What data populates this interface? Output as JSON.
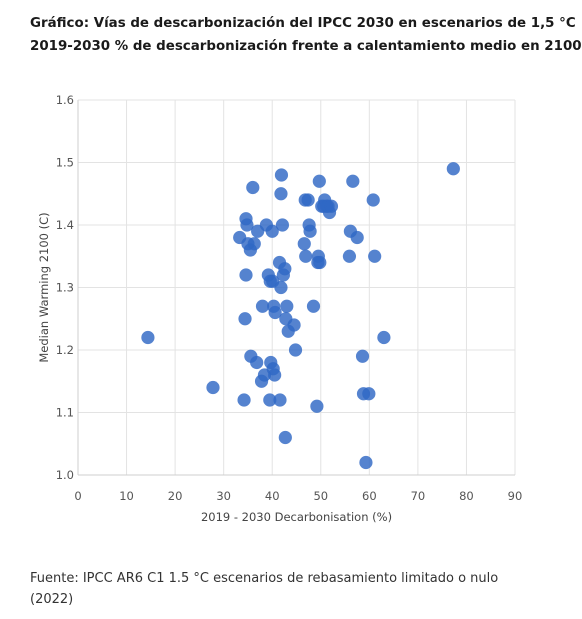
{
  "title_line1": "Gráfico: Vías de descarbonización del IPCC 2030 en escenarios de 1,5 °C",
  "title_line2": "2019-2030 % de descarbonización frente a calentamiento medio en 2100",
  "source": "Fuente: IPCC AR6 C1 1.5 °C escenarios de rebasamiento limitado o nulo (2022)",
  "chart_data": {
    "type": "scatter",
    "xlabel": "2019 - 2030 Decarbonisation (%)",
    "ylabel": "Median Warming 2100 (C)",
    "xlim": [
      0,
      90
    ],
    "ylim": [
      1.0,
      1.6
    ],
    "x_ticks": [
      0,
      10,
      20,
      30,
      40,
      50,
      60,
      70,
      80,
      90
    ],
    "y_ticks": [
      1.0,
      1.1,
      1.2,
      1.3,
      1.4,
      1.5,
      1.6
    ],
    "grid": true,
    "marker_color": "#2f68c4",
    "points": [
      {
        "x": 14.4,
        "y": 1.22
      },
      {
        "x": 27.8,
        "y": 1.14
      },
      {
        "x": 33.3,
        "y": 1.38
      },
      {
        "x": 34.2,
        "y": 1.12
      },
      {
        "x": 34.4,
        "y": 1.25
      },
      {
        "x": 34.6,
        "y": 1.32
      },
      {
        "x": 34.6,
        "y": 1.41
      },
      {
        "x": 34.8,
        "y": 1.4
      },
      {
        "x": 35.0,
        "y": 1.37
      },
      {
        "x": 35.5,
        "y": 1.36
      },
      {
        "x": 35.6,
        "y": 1.19
      },
      {
        "x": 36.0,
        "y": 1.46
      },
      {
        "x": 36.3,
        "y": 1.37
      },
      {
        "x": 36.8,
        "y": 1.18
      },
      {
        "x": 37.0,
        "y": 1.39
      },
      {
        "x": 37.8,
        "y": 1.15
      },
      {
        "x": 38.0,
        "y": 1.27
      },
      {
        "x": 38.4,
        "y": 1.16
      },
      {
        "x": 38.8,
        "y": 1.4
      },
      {
        "x": 39.2,
        "y": 1.32
      },
      {
        "x": 39.5,
        "y": 1.12
      },
      {
        "x": 39.6,
        "y": 1.31
      },
      {
        "x": 39.7,
        "y": 1.18
      },
      {
        "x": 40.0,
        "y": 1.39
      },
      {
        "x": 40.1,
        "y": 1.31
      },
      {
        "x": 40.2,
        "y": 1.17
      },
      {
        "x": 40.3,
        "y": 1.27
      },
      {
        "x": 40.5,
        "y": 1.16
      },
      {
        "x": 40.6,
        "y": 1.26
      },
      {
        "x": 41.5,
        "y": 1.34
      },
      {
        "x": 41.6,
        "y": 1.12
      },
      {
        "x": 41.8,
        "y": 1.45
      },
      {
        "x": 41.8,
        "y": 1.3
      },
      {
        "x": 41.9,
        "y": 1.48
      },
      {
        "x": 42.1,
        "y": 1.4
      },
      {
        "x": 42.3,
        "y": 1.32
      },
      {
        "x": 42.6,
        "y": 1.33
      },
      {
        "x": 42.7,
        "y": 1.06
      },
      {
        "x": 42.8,
        "y": 1.25
      },
      {
        "x": 43.0,
        "y": 1.27
      },
      {
        "x": 43.3,
        "y": 1.23
      },
      {
        "x": 44.5,
        "y": 1.24
      },
      {
        "x": 44.8,
        "y": 1.2
      },
      {
        "x": 46.6,
        "y": 1.37
      },
      {
        "x": 46.8,
        "y": 1.44
      },
      {
        "x": 46.9,
        "y": 1.35
      },
      {
        "x": 47.4,
        "y": 1.44
      },
      {
        "x": 47.6,
        "y": 1.4
      },
      {
        "x": 47.8,
        "y": 1.39
      },
      {
        "x": 48.5,
        "y": 1.27
      },
      {
        "x": 49.2,
        "y": 1.11
      },
      {
        "x": 49.4,
        "y": 1.34
      },
      {
        "x": 49.5,
        "y": 1.35
      },
      {
        "x": 49.7,
        "y": 1.47
      },
      {
        "x": 49.8,
        "y": 1.34
      },
      {
        "x": 50.2,
        "y": 1.43
      },
      {
        "x": 50.6,
        "y": 1.43
      },
      {
        "x": 50.8,
        "y": 1.44
      },
      {
        "x": 51.2,
        "y": 1.43
      },
      {
        "x": 51.5,
        "y": 1.43
      },
      {
        "x": 51.8,
        "y": 1.42
      },
      {
        "x": 52.2,
        "y": 1.43
      },
      {
        "x": 55.9,
        "y": 1.35
      },
      {
        "x": 56.1,
        "y": 1.39
      },
      {
        "x": 56.6,
        "y": 1.47
      },
      {
        "x": 57.5,
        "y": 1.38
      },
      {
        "x": 58.6,
        "y": 1.19
      },
      {
        "x": 58.8,
        "y": 1.13
      },
      {
        "x": 59.3,
        "y": 1.02
      },
      {
        "x": 59.9,
        "y": 1.13
      },
      {
        "x": 60.8,
        "y": 1.44
      },
      {
        "x": 61.1,
        "y": 1.35
      },
      {
        "x": 63.0,
        "y": 1.22
      },
      {
        "x": 77.3,
        "y": 1.49
      }
    ]
  }
}
